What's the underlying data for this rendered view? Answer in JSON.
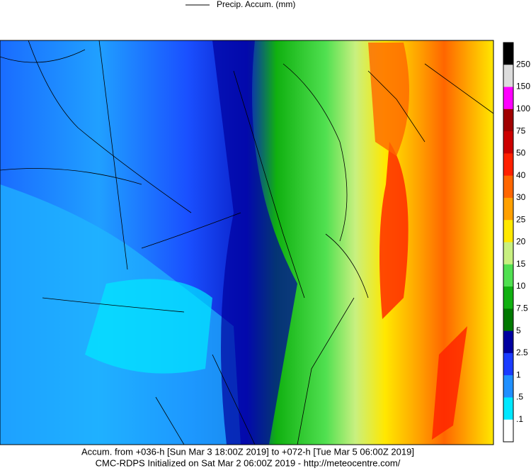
{
  "legend": {
    "label": "Precip. Accum. (mm)"
  },
  "colorbar": {
    "labels": [
      "250",
      "150",
      "100",
      "75",
      "50",
      "40",
      "30",
      "25",
      "20",
      "15",
      "10",
      "7.5",
      "5",
      "2.5",
      "1",
      ".5",
      ".1"
    ],
    "colors": [
      "#000000",
      "#dcdcdc",
      "#ff00ff",
      "#a00000",
      "#cc0000",
      "#ff2000",
      "#ff6600",
      "#ffa000",
      "#ffe800",
      "#c8f080",
      "#50e050",
      "#10b010",
      "#007800",
      "#0000a0",
      "#1a3cff",
      "#2090ff",
      "#00e8ff",
      "#ffffff"
    ]
  },
  "caption": {
    "line1": "Accum. from +036-h [Sun Mar 3 18:00Z 2019] to +072-h [Tue Mar 5 06:00Z 2019]",
    "line2": "CMC-RDPS Initialized on Sat Mar 2 06:00Z 2019 - http://meteocentre.com/"
  }
}
